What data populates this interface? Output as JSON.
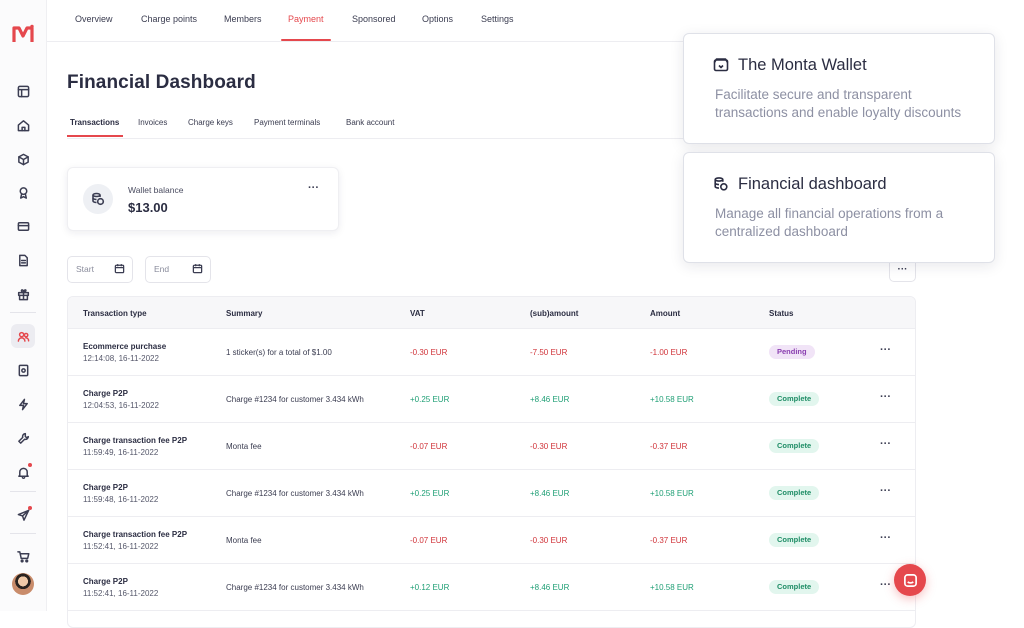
{
  "brand": {
    "accent": "#e5484d"
  },
  "sidebar": {
    "logo_icon": "monta-logo-icon",
    "items": [
      {
        "name": "sidebar-item-layout",
        "icon": "layout-icon"
      },
      {
        "name": "sidebar-item-home",
        "icon": "home-icon"
      },
      {
        "name": "sidebar-item-cube",
        "icon": "cube-icon"
      },
      {
        "name": "sidebar-item-award",
        "icon": "award-icon"
      },
      {
        "name": "sidebar-item-card",
        "icon": "credit-card-icon"
      },
      {
        "name": "sidebar-item-document",
        "icon": "document-icon"
      },
      {
        "name": "sidebar-item-gift",
        "icon": "gift-icon"
      },
      {
        "name": "sidebar-item-team",
        "icon": "team-icon",
        "active": true
      },
      {
        "name": "sidebar-item-receipt",
        "icon": "receipt-icon"
      },
      {
        "name": "sidebar-item-lightning",
        "icon": "lightning-icon"
      },
      {
        "name": "sidebar-item-wrench",
        "icon": "wrench-icon"
      },
      {
        "name": "sidebar-item-bell",
        "icon": "bell-icon"
      },
      {
        "name": "sidebar-item-send",
        "icon": "send-icon"
      },
      {
        "name": "sidebar-item-cart",
        "icon": "cart-icon"
      }
    ]
  },
  "topnav": {
    "items": [
      "Overview",
      "Charge points",
      "Members",
      "Payment",
      "Sponsored",
      "Options",
      "Settings"
    ],
    "active": "Payment"
  },
  "page": {
    "title": "Financial Dashboard",
    "tabs": [
      "Transactions",
      "Invoices",
      "Charge keys",
      "Payment terminals",
      "Bank account"
    ],
    "active_tab": "Transactions"
  },
  "wallet": {
    "label": "Wallet balance",
    "value": "$13.00"
  },
  "filters": {
    "start_placeholder": "Start",
    "end_placeholder": "End"
  },
  "table": {
    "headers": [
      "Transaction type",
      "Summary",
      "VAT",
      "(sub)amount",
      "Amount",
      "Status"
    ],
    "rows": [
      {
        "type": "Ecommerce purchase",
        "time": "12:14:08, 16-11-2022",
        "summary": "1 sticker(s) for a total of $1.00",
        "vat": "-0.30 EUR",
        "subamount": "-7.50 EUR",
        "amount": "-1.00 EUR",
        "status": "Pending"
      },
      {
        "type": "Charge P2P",
        "time": "12:04:53, 16-11-2022",
        "summary": "Charge #1234 for customer 3.434 kWh",
        "vat": "+0.25 EUR",
        "subamount": "+8.46 EUR",
        "amount": "+10.58 EUR",
        "status": "Complete"
      },
      {
        "type": "Charge transaction fee P2P",
        "time": "11:59:49, 16-11-2022",
        "summary": "Monta fee",
        "vat": "-0.07 EUR",
        "subamount": "-0.30 EUR",
        "amount": "-0.37 EUR",
        "status": "Complete"
      },
      {
        "type": "Charge P2P",
        "time": "11:59:48, 16-11-2022",
        "summary": "Charge #1234 for customer 3.434 kWh",
        "vat": "+0.25 EUR",
        "subamount": "+8.46 EUR",
        "amount": "+10.58 EUR",
        "status": "Complete"
      },
      {
        "type": "Charge transaction fee P2P",
        "time": "11:52:41, 16-11-2022",
        "summary": "Monta fee",
        "vat": "-0.07 EUR",
        "subamount": "-0.30 EUR",
        "amount": "-0.37 EUR",
        "status": "Complete"
      },
      {
        "type": "Charge P2P",
        "time": "11:52:41, 16-11-2022",
        "summary": "Charge #1234 for customer 3.434 kWh",
        "vat": "+0.12 EUR",
        "subamount": "+8.46 EUR",
        "amount": "+10.58 EUR",
        "status": "Complete"
      }
    ]
  },
  "panels": {
    "wallet": {
      "title": "The Monta Wallet",
      "desc": "Facilitate secure and transparent transactions and enable loyalty discounts",
      "icon": "wallet-icon"
    },
    "dashboard": {
      "title": "Financial dashboard",
      "desc": "Manage all financial operations from a centralized dashboard",
      "icon": "coins-icon"
    }
  },
  "chat": {
    "icon": "chat-icon"
  }
}
